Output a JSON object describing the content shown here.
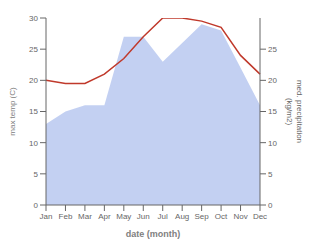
{
  "chart_data": {
    "type": "line",
    "categories": [
      "Jan",
      "Feb",
      "Mar",
      "Apr",
      "May",
      "Jun",
      "Jul",
      "Aug",
      "Sep",
      "Oct",
      "Nov",
      "Dec"
    ],
    "series": [
      {
        "type": "area",
        "color": "#b8c8f0",
        "values": [
          13,
          15,
          16,
          16,
          27,
          27,
          23,
          26,
          29,
          28,
          22,
          16
        ]
      },
      {
        "type": "line",
        "color": "#c0392b",
        "values": [
          20,
          19.5,
          19.5,
          21,
          23.5,
          27,
          30,
          30,
          29.5,
          28.5,
          24,
          21
        ]
      }
    ],
    "xlabel": "date (month)",
    "ylabel": "max temp (C)",
    "y2label": "med. precipitation\n(kg/m2)",
    "ylim": [
      0,
      30
    ],
    "yticks": [
      0,
      5,
      10,
      15,
      20,
      25,
      30
    ],
    "y2lim": [
      0,
      30
    ],
    "y2ticks": [
      0,
      5,
      10,
      15,
      20,
      25
    ],
    "grid": false
  }
}
